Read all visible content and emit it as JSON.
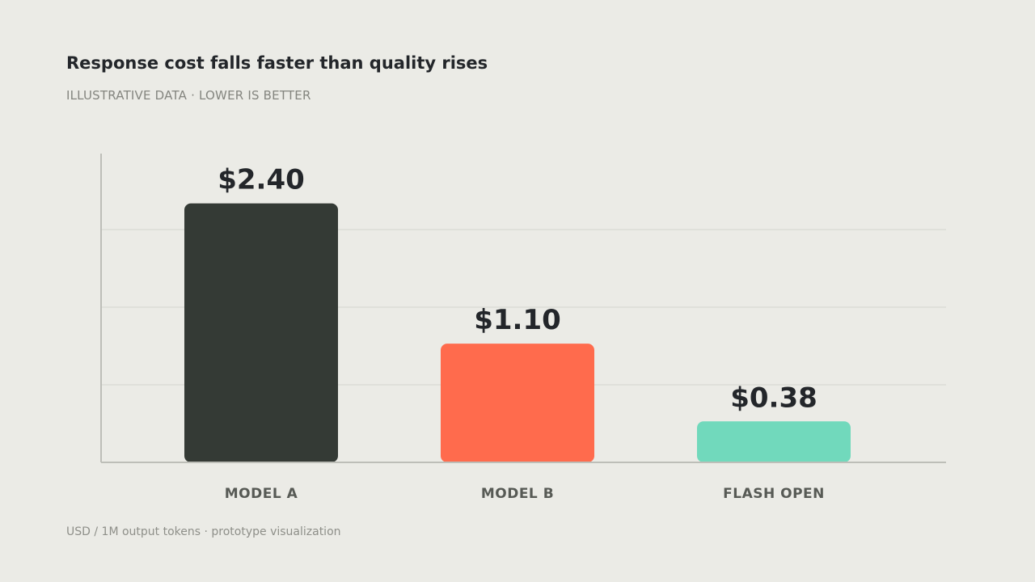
{
  "header": {
    "title": "Response cost falls faster than quality rises",
    "subtitle": "ILLUSTRATIVE DATA · LOWER IS BETTER"
  },
  "footer": {
    "note": "USD / 1M output tokens · prototype visualization"
  },
  "chart_data": {
    "type": "bar",
    "categories": [
      "MODEL A",
      "MODEL B",
      "FLASH OPEN"
    ],
    "values": [
      2.4,
      1.1,
      0.38
    ],
    "value_labels": [
      "$2.40",
      "$1.10",
      "$0.38"
    ],
    "colors": [
      "#343A35",
      "#FF6B4D",
      "#71D9BC"
    ],
    "grid_color": "#D3D4CE",
    "axis_color": "#BDBEB8",
    "title": "Response cost falls faster than quality rises",
    "xlabel": "",
    "ylabel": "",
    "grid": true,
    "legend": "none"
  }
}
